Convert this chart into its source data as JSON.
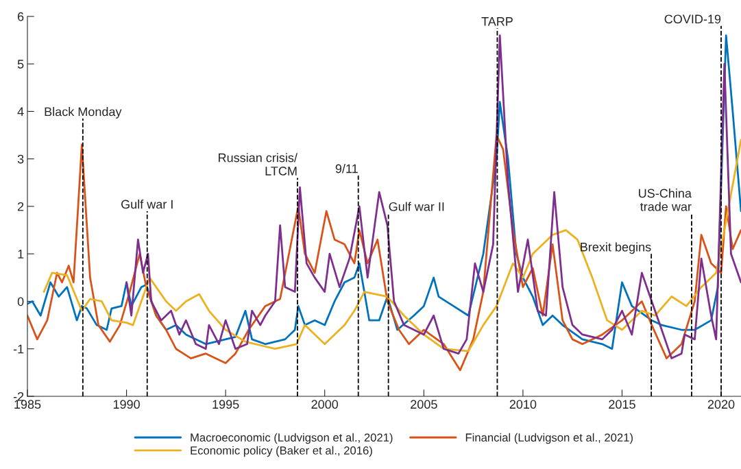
{
  "chart_data": {
    "type": "line",
    "xlim": [
      "1985",
      "2021"
    ],
    "xticks": [
      "1985",
      "1990",
      "1995",
      "2000",
      "2005",
      "2010",
      "2015",
      "2020"
    ],
    "ylim": [
      -2,
      6
    ],
    "yticks": [
      -2,
      -1,
      0,
      1,
      2,
      3,
      4,
      5,
      6
    ],
    "grid": false,
    "legend": "bottom",
    "line_style": "solid",
    "marker": "none",
    "series": [
      {
        "name": "Macroeconomic (Ludvigson et al., 2021)",
        "color": "#0072bd",
        "x": [
          "1985-01",
          "1985-04",
          "1985-09",
          "1986-03",
          "1986-08",
          "1987-01",
          "1987-07",
          "1987-10",
          "1988-01",
          "1988-07",
          "1989-01",
          "1989-04",
          "1989-10",
          "1990-01",
          "1990-04",
          "1990-10",
          "1991-01",
          "1991-07",
          "1992-01",
          "1992-07",
          "1993-01",
          "1994-01",
          "1995-01",
          "1995-07",
          "1996-01",
          "1996-05",
          "1997-01",
          "1998-01",
          "1998-07",
          "1998-09",
          "1999-01",
          "1999-07",
          "2000-01",
          "2000-07",
          "2001-01",
          "2001-07",
          "2001-10",
          "2002-04",
          "2002-10",
          "2003-03",
          "2003-09",
          "2004-07",
          "2005-01",
          "2005-07",
          "2005-10",
          "2006-07",
          "2007-04",
          "2008-01",
          "2008-09",
          "2008-11",
          "2009-04",
          "2009-09",
          "2010-01",
          "2010-07",
          "2011-01",
          "2011-07",
          "2012-01",
          "2013-01",
          "2014-01",
          "2014-07",
          "2015-01",
          "2015-07",
          "2016-07",
          "2017-01",
          "2018-01",
          "2018-09",
          "2019-07",
          "2019-11",
          "2020-04",
          "2020-08",
          "2021-01"
        ],
        "values": [
          -0.05,
          0.0,
          -0.3,
          0.4,
          0.1,
          0.3,
          -0.4,
          -0.1,
          -0.15,
          -0.5,
          -0.6,
          -0.15,
          -0.1,
          0.4,
          -0.1,
          0.3,
          0.35,
          -0.3,
          -0.6,
          -0.5,
          -0.7,
          -0.9,
          -0.8,
          -0.75,
          -0.2,
          -0.8,
          -0.9,
          -0.8,
          -0.6,
          -0.1,
          -0.5,
          -0.4,
          -0.5,
          0.0,
          0.4,
          0.5,
          0.8,
          -0.4,
          -0.4,
          0.1,
          -0.6,
          -0.3,
          -0.1,
          0.5,
          0.1,
          -0.1,
          -0.3,
          1.0,
          3.0,
          4.2,
          3.0,
          1.0,
          0.5,
          0.1,
          -0.5,
          -0.3,
          -0.5,
          -0.8,
          -0.9,
          -1.0,
          0.4,
          -0.1,
          -0.4,
          -0.5,
          -0.6,
          -0.6,
          -0.4,
          0.3,
          5.6,
          4.0,
          1.9
        ]
      },
      {
        "name": "Financial (Ludvigson et al., 2021)",
        "color": "#d95319",
        "x": [
          "1985-01",
          "1985-07",
          "1986-01",
          "1986-07",
          "1986-10",
          "1987-02",
          "1987-05",
          "1987-10",
          "1988-03",
          "1988-08",
          "1989-03",
          "1989-09",
          "1990-03",
          "1990-09",
          "1991-01",
          "1991-07",
          "1992-01",
          "1992-07",
          "1993-04",
          "1994-01",
          "1995-01",
          "1995-07",
          "1996-03",
          "1997-01",
          "1997-10",
          "1998-09",
          "1999-01",
          "1999-07",
          "2000-02",
          "2000-07",
          "2001-01",
          "2001-07",
          "2001-10",
          "2002-03",
          "2002-09",
          "2003-03",
          "2003-10",
          "2004-04",
          "2005-01",
          "2006-01",
          "2006-11",
          "2007-07",
          "2008-01",
          "2008-09",
          "2009-01",
          "2009-07",
          "2010-01",
          "2010-07",
          "2011-01",
          "2011-07",
          "2012-01",
          "2012-07",
          "2013-01",
          "2014-01",
          "2015-01",
          "2016-01",
          "2016-07",
          "2017-04",
          "2018-01",
          "2018-09",
          "2019-01",
          "2019-07",
          "2020-01",
          "2020-04",
          "2020-08",
          "2021-01"
        ],
        "values": [
          -0.3,
          -0.8,
          -0.4,
          0.6,
          0.4,
          0.75,
          0.4,
          3.3,
          0.5,
          -0.5,
          -0.85,
          -0.5,
          0.2,
          1.0,
          0.3,
          -0.3,
          -0.6,
          -1.0,
          -1.2,
          -1.1,
          -1.3,
          -1.1,
          -0.6,
          -0.1,
          0.05,
          2.0,
          1.0,
          0.6,
          1.9,
          1.3,
          1.2,
          0.8,
          1.5,
          0.8,
          1.3,
          0.0,
          -0.6,
          -0.9,
          -0.6,
          -0.9,
          -1.45,
          -0.8,
          0.2,
          3.5,
          3.2,
          1.5,
          0.3,
          0.7,
          -0.3,
          1.2,
          -0.4,
          -0.8,
          -0.9,
          -0.7,
          -0.4,
          0.0,
          -0.5,
          -1.2,
          -0.9,
          0.0,
          1.4,
          0.8,
          0.6,
          2.0,
          1.1,
          1.5
        ]
      },
      {
        "name": "Economic policy (Baker et al., 2016)",
        "color": "#edb120",
        "x": [
          "1985-11",
          "1986-04",
          "1987-01",
          "1987-10",
          "1988-03",
          "1988-10",
          "1989-04",
          "1990-01",
          "1990-05",
          "1991-01",
          "1991-03",
          "1992-01",
          "1992-07",
          "1993-01",
          "1993-09",
          "1994-03",
          "1995-01",
          "1996-01",
          "1997-01",
          "1997-07",
          "1998-08",
          "1999-01",
          "2000-01",
          "2001-01",
          "2001-07",
          "2002-01",
          "2003-03",
          "2004-01",
          "2005-01",
          "2006-01",
          "2007-04",
          "2008-01",
          "2008-09",
          "2009-07",
          "2010-01",
          "2010-07",
          "2011-07",
          "2012-03",
          "2012-10",
          "2013-07",
          "2014-04",
          "2015-01",
          "2016-01",
          "2016-09",
          "2017-07",
          "2018-04",
          "2019-01",
          "2019-10",
          "2020-03",
          "2021-01"
        ],
        "values": [
          0.2,
          0.6,
          0.55,
          -0.2,
          0.05,
          0.0,
          -0.4,
          -0.45,
          -0.5,
          0.3,
          0.5,
          0.0,
          -0.2,
          0.0,
          0.15,
          -0.2,
          -0.6,
          -0.85,
          -0.95,
          -1.0,
          -0.9,
          -0.5,
          -0.9,
          -0.5,
          -0.2,
          0.2,
          0.1,
          -0.3,
          -0.7,
          -1.0,
          -1.05,
          -0.5,
          -0.1,
          0.8,
          0.5,
          1.0,
          1.4,
          1.5,
          1.3,
          0.5,
          -0.4,
          -0.6,
          -0.2,
          -0.3,
          0.1,
          -0.1,
          0.3,
          0.6,
          1.5,
          3.4
        ]
      },
      {
        "color": "#7e2f8e",
        "x": [
          "1990-01",
          "1990-04",
          "1990-08",
          "1990-11",
          "1991-02",
          "1991-04",
          "1991-10",
          "1992-04",
          "1992-09",
          "1993-01",
          "1993-07",
          "1994-01",
          "1994-03",
          "1994-09",
          "1995-01",
          "1995-07",
          "1996-02",
          "1996-05",
          "1996-10",
          "1997-01",
          "1997-07",
          "1997-10",
          "1998-01",
          "1998-07",
          "1998-10",
          "1999-02",
          "1999-07",
          "2000-01",
          "2000-04",
          "2000-10",
          "2001-04",
          "2001-10",
          "2002-03",
          "2002-10",
          "2003-03",
          "2003-07",
          "2004-01",
          "2005-01",
          "2005-07",
          "2006-01",
          "2006-10",
          "2007-03",
          "2007-08",
          "2008-01",
          "2008-07",
          "2008-11",
          "2009-04",
          "2009-10",
          "2010-04",
          "2010-10",
          "2011-03",
          "2011-08",
          "2012-01",
          "2012-07",
          "2013-01",
          "2014-01",
          "2014-07",
          "2015-01",
          "2015-07",
          "2016-01",
          "2016-07",
          "2017-01",
          "2017-07",
          "2018-01",
          "2018-03",
          "2018-09",
          "2019-01",
          "2019-07",
          "2019-10",
          "2020-03",
          "2020-07",
          "2021-01"
        ],
        "values": [
          0.4,
          -0.3,
          1.3,
          0.6,
          1.0,
          0.0,
          -0.4,
          -0.2,
          -0.7,
          -0.4,
          -0.9,
          -1.0,
          -0.5,
          -0.9,
          -0.4,
          -1.0,
          -0.9,
          -0.2,
          -0.5,
          -0.3,
          0.0,
          1.6,
          0.3,
          0.2,
          2.4,
          0.8,
          0.5,
          0.2,
          1.0,
          0.3,
          0.9,
          2.0,
          0.5,
          2.3,
          1.6,
          0.0,
          -0.5,
          -0.7,
          -0.3,
          -1.0,
          -1.1,
          -0.8,
          0.8,
          0.2,
          1.2,
          5.6,
          2.5,
          0.2,
          1.3,
          -0.2,
          -0.3,
          2.3,
          0.3,
          -0.5,
          -0.7,
          -0.8,
          -0.6,
          -0.2,
          -0.7,
          0.6,
          0.0,
          -0.6,
          -1.2,
          -1.1,
          -0.7,
          -0.8,
          0.9,
          -0.3,
          -0.8,
          5.0,
          1.0,
          0.4
        ]
      }
    ],
    "ref_lines": [
      {
        "axis": "x",
        "value": "1987-10-19",
        "label": "Black Monday",
        "color": "#000000",
        "line_style": "dashed"
      },
      {
        "axis": "x",
        "value": "1991-01-17",
        "label": "Gulf war I",
        "color": "#000000",
        "line_style": "dashed"
      },
      {
        "axis": "x",
        "value": "1998-08-17",
        "label": "Russian crisis/\nLTCM",
        "color": "#000000",
        "line_style": "dashed"
      },
      {
        "axis": "x",
        "value": "2001-09-11",
        "label": "9/11",
        "color": "#000000",
        "line_style": "dashed"
      },
      {
        "axis": "x",
        "value": "2003-03-20",
        "label": "Gulf war II",
        "color": "#000000",
        "line_style": "dashed"
      },
      {
        "axis": "x",
        "value": "2008-09-15",
        "label": "TARP",
        "color": "#000000",
        "line_style": "dashed"
      },
      {
        "axis": "x",
        "value": "2016-06-23",
        "label": "Brexit begins",
        "color": "#000000",
        "line_style": "dashed"
      },
      {
        "axis": "x",
        "value": "2018-07-06",
        "label": "US-China\ntrade war",
        "color": "#000000",
        "line_style": "dashed"
      },
      {
        "axis": "x",
        "value": "2020-01",
        "label": "COVID-19",
        "color": "#000000",
        "line_style": "dashed"
      }
    ]
  }
}
